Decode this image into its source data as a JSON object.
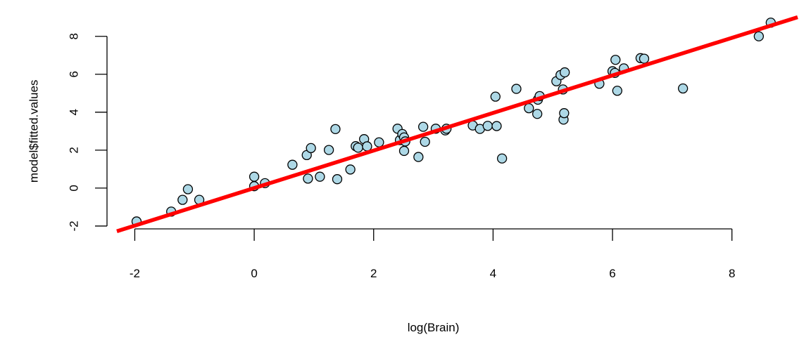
{
  "chart_data": {
    "type": "scatter",
    "title": "",
    "xlabel": "log(Brain)",
    "ylabel": "model$fitted.values",
    "xlim": [
      -2.3,
      9.1
    ],
    "ylim": [
      -2.15,
      9.1
    ],
    "x_ticks": [
      -2,
      0,
      2,
      4,
      6,
      8
    ],
    "y_ticks": [
      -2,
      0,
      2,
      4,
      6,
      8
    ],
    "x_tick_labels": [
      "-2",
      "0",
      "2",
      "4",
      "6",
      "8"
    ],
    "y_tick_labels": [
      "-2",
      "0",
      "2",
      "4",
      "6",
      "8"
    ],
    "grid": false,
    "legend": "none",
    "point_fill": "#add8e6",
    "point_stroke": "#000000",
    "line_color": "#ff0000",
    "fit_line": {
      "intercept": 0.0,
      "slope": 0.99
    },
    "points": [
      [
        -1.97,
        -1.76
      ],
      [
        -1.39,
        -1.24
      ],
      [
        -1.2,
        -0.62
      ],
      [
        -1.11,
        -0.06
      ],
      [
        -0.92,
        -0.62
      ],
      [
        0.0,
        0.6
      ],
      [
        0.0,
        0.1
      ],
      [
        0.18,
        0.26
      ],
      [
        0.64,
        1.23
      ],
      [
        0.88,
        1.74
      ],
      [
        0.9,
        0.5
      ],
      [
        0.95,
        2.11
      ],
      [
        1.1,
        0.6
      ],
      [
        1.25,
        2.01
      ],
      [
        1.36,
        3.11
      ],
      [
        1.39,
        0.47
      ],
      [
        1.61,
        0.98
      ],
      [
        1.7,
        2.21
      ],
      [
        1.74,
        2.13
      ],
      [
        1.84,
        2.58
      ],
      [
        1.89,
        2.2
      ],
      [
        2.09,
        2.41
      ],
      [
        2.4,
        3.13
      ],
      [
        2.44,
        2.53
      ],
      [
        2.48,
        2.85
      ],
      [
        2.51,
        2.67
      ],
      [
        2.51,
        1.96
      ],
      [
        2.53,
        2.46
      ],
      [
        2.75,
        1.64
      ],
      [
        2.83,
        3.23
      ],
      [
        2.86,
        2.44
      ],
      [
        3.04,
        3.13
      ],
      [
        3.2,
        3.04
      ],
      [
        3.22,
        3.13
      ],
      [
        3.66,
        3.3
      ],
      [
        3.78,
        3.12
      ],
      [
        3.91,
        3.28
      ],
      [
        4.04,
        4.82
      ],
      [
        4.06,
        3.27
      ],
      [
        4.15,
        1.56
      ],
      [
        4.39,
        5.23
      ],
      [
        4.6,
        4.21
      ],
      [
        4.74,
        3.91
      ],
      [
        4.75,
        4.66
      ],
      [
        4.78,
        4.85
      ],
      [
        5.06,
        5.63
      ],
      [
        5.13,
        5.96
      ],
      [
        5.17,
        5.2
      ],
      [
        5.18,
        3.61
      ],
      [
        5.19,
        3.95
      ],
      [
        5.2,
        6.1
      ],
      [
        5.78,
        5.5
      ],
      [
        6.0,
        6.16
      ],
      [
        6.04,
        6.07
      ],
      [
        6.05,
        6.76
      ],
      [
        6.08,
        5.13
      ],
      [
        6.19,
        6.31
      ],
      [
        6.47,
        6.85
      ],
      [
        6.53,
        6.82
      ],
      [
        7.18,
        5.25
      ],
      [
        8.45,
        8.0
      ],
      [
        8.65,
        8.72
      ]
    ]
  }
}
